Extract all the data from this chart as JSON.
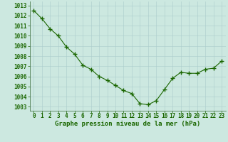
{
  "x": [
    0,
    1,
    2,
    3,
    4,
    5,
    6,
    7,
    8,
    9,
    10,
    11,
    12,
    13,
    14,
    15,
    16,
    17,
    18,
    19,
    20,
    21,
    22,
    23
  ],
  "y": [
    1012.5,
    1011.7,
    1010.7,
    1010.0,
    1008.9,
    1008.2,
    1007.1,
    1006.7,
    1006.0,
    1005.6,
    1005.1,
    1004.6,
    1004.3,
    1003.3,
    1003.2,
    1003.6,
    1004.7,
    1005.8,
    1006.4,
    1006.3,
    1006.3,
    1006.7,
    1006.8,
    1007.5
  ],
  "line_color": "#1a6600",
  "marker": "+",
  "marker_size": 4,
  "marker_linewidth": 1.0,
  "line_width": 0.8,
  "bg_plot": "#cce8e0",
  "bg_fig": "#cce8e0",
  "grid_color": "#aacccc",
  "xlabel": "Graphe pression niveau de la mer (hPa)",
  "xlabel_fontsize": 6.5,
  "xlabel_fontweight": "bold",
  "xlabel_color": "#1a6600",
  "tick_color": "#1a6600",
  "tick_fontsize": 5.5,
  "ytick_vals": [
    1003,
    1004,
    1005,
    1006,
    1007,
    1008,
    1009,
    1010,
    1011,
    1012,
    1013
  ],
  "ytick_labels": [
    "1003",
    "1004",
    "1005",
    "1006",
    "1007",
    "1008",
    "1009",
    "1010",
    "1011",
    "1012",
    "1013"
  ],
  "ylim": [
    1002.6,
    1013.4
  ],
  "xlim": [
    -0.5,
    23.5
  ]
}
